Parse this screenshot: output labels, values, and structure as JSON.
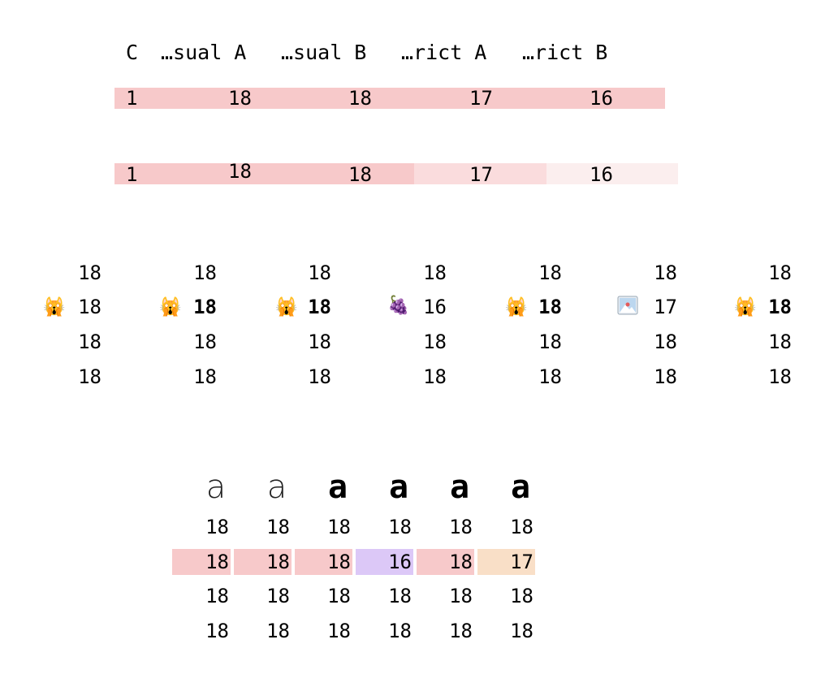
{
  "header": {
    "columns": [
      "C",
      "…sual A",
      "…sual B",
      "…rict A",
      "…rict B"
    ]
  },
  "bar_row_1": {
    "values": [
      "1",
      "18",
      "18",
      "17",
      "16"
    ],
    "color": "#f7c9ca"
  },
  "bar_row_2": {
    "values": [
      "1",
      "18",
      "18",
      "17",
      "16"
    ],
    "colors": [
      "#f7c9ca",
      "#f7c9ca",
      "#fadcdd",
      "#fbeeee"
    ]
  },
  "grid": {
    "columns": [
      {
        "rows": [
          "18",
          "18",
          "18",
          "18"
        ],
        "icon": "screaming-cat-icon",
        "icon_glyph": "🙀",
        "bold": false
      },
      {
        "rows": [
          "18",
          "18",
          "18",
          "18"
        ],
        "icon": "screaming-cat-icon",
        "icon_glyph": "🙀",
        "bold": true
      },
      {
        "rows": [
          "18",
          "18",
          "18",
          "18"
        ],
        "icon": "screaming-cat-icon",
        "icon_glyph": "🙀",
        "bold": true
      },
      {
        "rows": [
          "18",
          "16",
          "18",
          "18"
        ],
        "icon": "grapes-icon",
        "icon_glyph": "🍇",
        "bold": false
      },
      {
        "rows": [
          "18",
          "18",
          "18",
          "18"
        ],
        "icon": "screaming-cat-icon",
        "icon_glyph": "🙀",
        "bold": true
      },
      {
        "rows": [
          "18",
          "17",
          "18",
          "18"
        ],
        "icon": "broken-image-icon",
        "icon_glyph": "",
        "bold": false
      },
      {
        "rows": [
          "18",
          "18",
          "18",
          "18"
        ],
        "icon": "screaming-cat-icon",
        "icon_glyph": "🙀",
        "bold": true
      }
    ]
  },
  "bottom": {
    "glyphs": [
      "a",
      "a",
      "a",
      "a",
      "a",
      "a"
    ],
    "rows": [
      [
        "18",
        "18",
        "18",
        "18",
        "18",
        "18"
      ],
      [
        "18",
        "18",
        "18",
        "16",
        "18",
        "17"
      ],
      [
        "18",
        "18",
        "18",
        "18",
        "18",
        "18"
      ],
      [
        "18",
        "18",
        "18",
        "18",
        "18",
        "18"
      ]
    ],
    "highlight_colors": [
      "#f7c9ca",
      "#f7c9ca",
      "#f7c9ca",
      "#dcc8f7",
      "#f7c9ca",
      "#f9dfc7"
    ]
  }
}
